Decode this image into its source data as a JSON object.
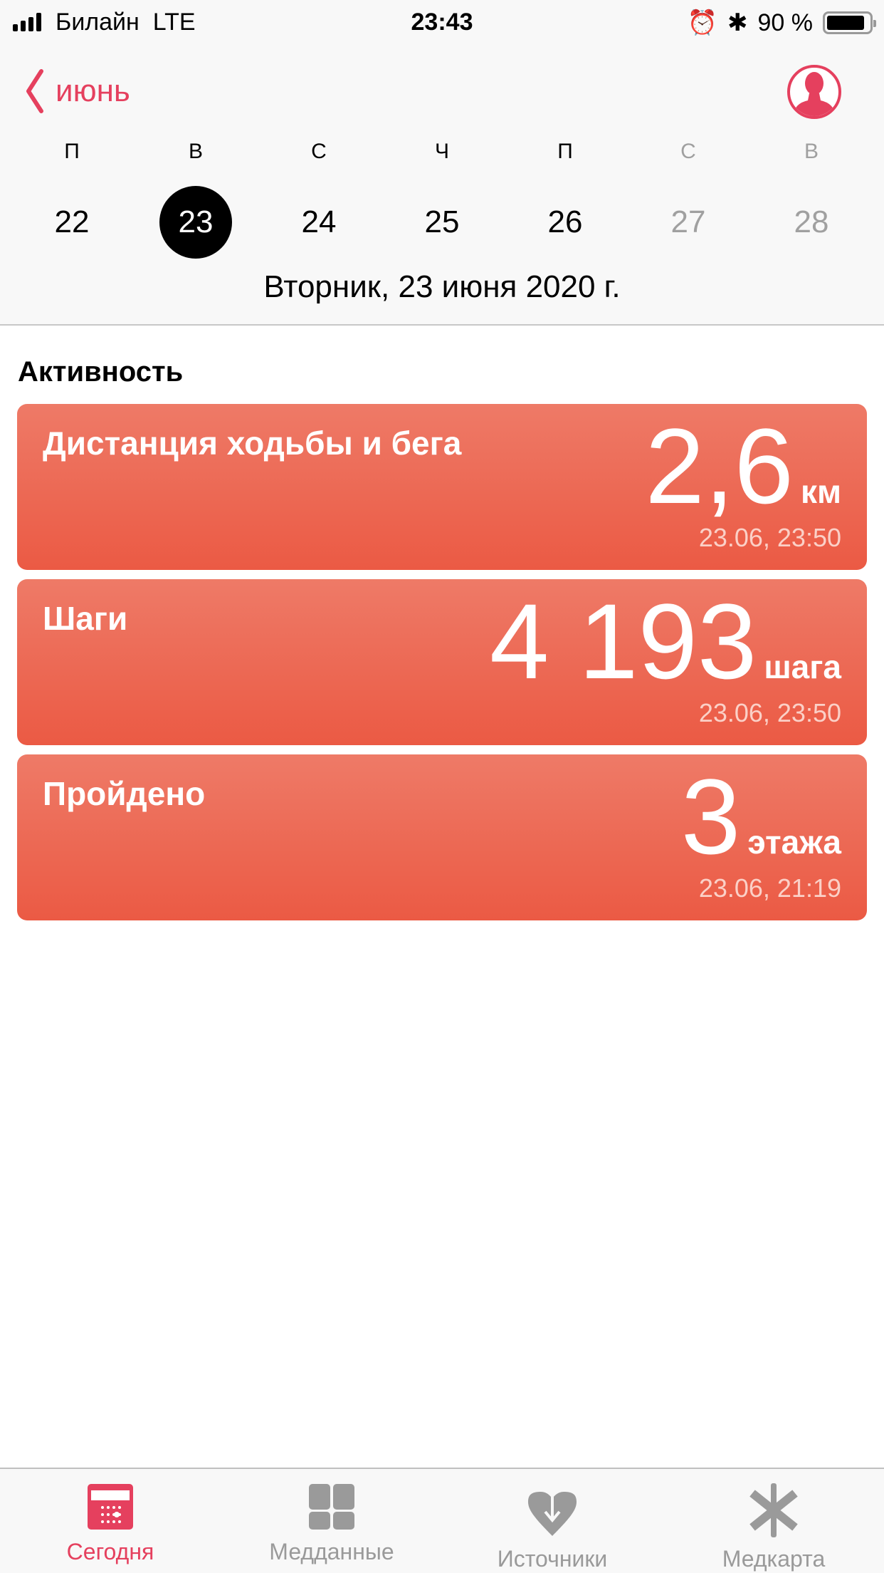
{
  "status_bar": {
    "carrier": "Билайн",
    "network": "LTE",
    "time": "23:43",
    "battery": "90 %",
    "battery_level": 0.9
  },
  "nav": {
    "back_label": "июнь"
  },
  "week": {
    "days": [
      {
        "letter": "П",
        "number": "22",
        "state": "normal"
      },
      {
        "letter": "В",
        "number": "23",
        "state": "selected"
      },
      {
        "letter": "С",
        "number": "24",
        "state": "normal"
      },
      {
        "letter": "Ч",
        "number": "25",
        "state": "normal"
      },
      {
        "letter": "П",
        "number": "26",
        "state": "normal"
      },
      {
        "letter": "С",
        "number": "27",
        "state": "future"
      },
      {
        "letter": "В",
        "number": "28",
        "state": "future"
      }
    ],
    "full_date": "Вторник, 23 июня 2020 г."
  },
  "section_title": "Активность",
  "cards": [
    {
      "title": "Дистанция ходьбы и бега",
      "value": "2,6",
      "unit": "км",
      "timestamp": "23.06, 23:50"
    },
    {
      "title": "Шаги",
      "value": "4 193",
      "unit": "шага",
      "timestamp": "23.06, 23:50"
    },
    {
      "title": "Пройдено",
      "value": "3",
      "unit": "этажа",
      "timestamp": "23.06, 21:19"
    }
  ],
  "tabs": [
    {
      "label": "Сегодня",
      "icon": "calendar-icon",
      "active": true
    },
    {
      "label": "Медданные",
      "icon": "grid-icon",
      "active": false
    },
    {
      "label": "Источники",
      "icon": "heart-download-icon",
      "active": false
    },
    {
      "label": "Медкарта",
      "icon": "asterisk-icon",
      "active": false
    }
  ],
  "colors": {
    "accent": "#e5405e",
    "card_top": "#ee7a67",
    "card_bottom": "#eb5a44",
    "inactive": "#9a9a9a"
  }
}
